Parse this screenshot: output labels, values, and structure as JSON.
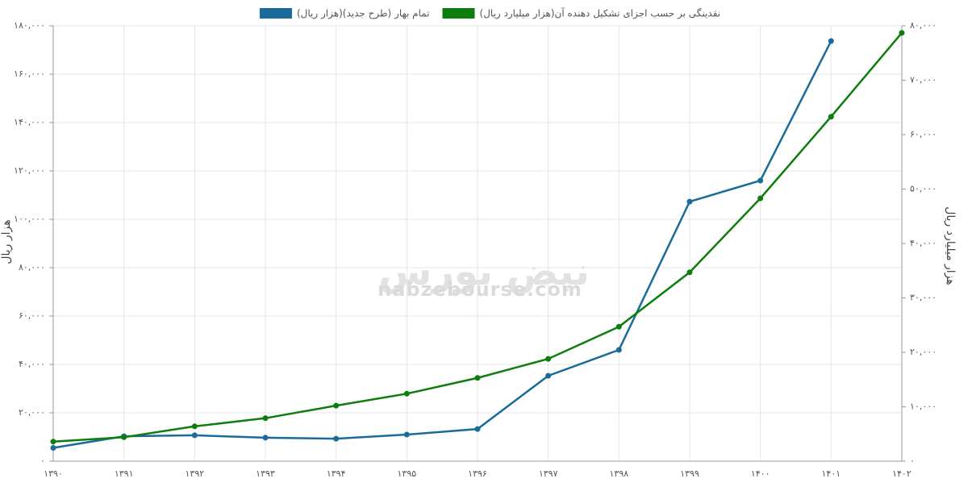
{
  "chart_data": {
    "type": "line",
    "watermark": "nabzebourse.com",
    "watermark_logo": "نبض بورس",
    "ylabel": "هزار ریال",
    "y2label": "هزار میلیارد ریال",
    "categories": [
      "۱۳۹۰",
      "۱۳۹۱",
      "۱۳۹۲",
      "۱۳۹۳",
      "۱۳۹۴",
      "۱۳۹۵",
      "۱۳۹۶",
      "۱۳۹۷",
      "۱۳۹۸",
      "۱۳۹۹",
      "۱۴۰۰",
      "۱۴۰۱",
      "۱۴۰۲"
    ],
    "series": [
      {
        "name": "تمام بهار (طرح جدید)(هزار ریال)",
        "color": "#1a6b9a",
        "axis": "y",
        "values": [
          5500,
          10300,
          10700,
          9700,
          9300,
          11000,
          13300,
          35300,
          46000,
          107300,
          116000,
          173700,
          null
        ]
      },
      {
        "name": "نقدینگی بر حسب اجزای تشکیل دهنده آن(هزار میلیارد ریال)",
        "color": "#0d7d0d",
        "axis": "y2",
        "values": [
          3600,
          4400,
          6400,
          7900,
          10200,
          12400,
          15300,
          18800,
          24700,
          34700,
          48300,
          63300,
          78700
        ]
      }
    ],
    "ylim": [
      0,
      180000
    ],
    "yticks": [
      {
        "value": 0,
        "label": "۰"
      },
      {
        "value": 20000,
        "label": "۲۰,۰۰۰"
      },
      {
        "value": 40000,
        "label": "۴۰,۰۰۰"
      },
      {
        "value": 60000,
        "label": "۶۰,۰۰۰"
      },
      {
        "value": 80000,
        "label": "۸۰,۰۰۰"
      },
      {
        "value": 100000,
        "label": "۱۰۰,۰۰۰"
      },
      {
        "value": 120000,
        "label": "۱۲۰,۰۰۰"
      },
      {
        "value": 140000,
        "label": "۱۴۰,۰۰۰"
      },
      {
        "value": 160000,
        "label": "۱۶۰,۰۰۰"
      },
      {
        "value": 180000,
        "label": "۱۸۰,۰۰۰"
      }
    ],
    "y2lim": [
      0,
      80000
    ],
    "y2ticks": [
      {
        "value": 0,
        "label": "۰"
      },
      {
        "value": 10000,
        "label": "۱۰,۰۰۰"
      },
      {
        "value": 20000,
        "label": "۲۰,۰۰۰"
      },
      {
        "value": 30000,
        "label": "۳۰,۰۰۰"
      },
      {
        "value": 40000,
        "label": "۴۰,۰۰۰"
      },
      {
        "value": 50000,
        "label": "۵۰,۰۰۰"
      },
      {
        "value": 60000,
        "label": "۶۰,۰۰۰"
      },
      {
        "value": 70000,
        "label": "۷۰,۰۰۰"
      },
      {
        "value": 80000,
        "label": "۸۰,۰۰۰"
      }
    ],
    "grid": true
  }
}
